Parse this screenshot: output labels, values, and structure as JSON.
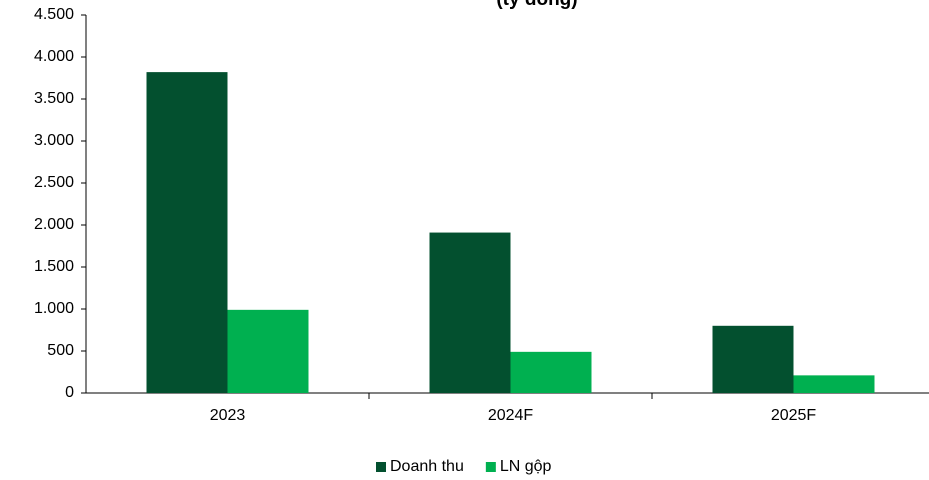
{
  "chart_data": {
    "type": "bar",
    "title": "(tỷ đồng)",
    "categories": [
      "2023",
      "2024F",
      "2025F"
    ],
    "series": [
      {
        "name": "Doanh thu",
        "color": "#03502f",
        "values": [
          3820,
          1910,
          800
        ]
      },
      {
        "name": "LN gộp",
        "color": "#00b050",
        "values": [
          990,
          490,
          210
        ]
      }
    ],
    "ylim": [
      0,
      4500
    ],
    "yticks": [
      0,
      500,
      {
        "value": 1000,
        "label": "1.000"
      },
      {
        "value": 1500,
        "label": "1.500"
      },
      {
        "value": 2000,
        "label": "2.000"
      },
      {
        "value": 2500,
        "label": "2.500"
      },
      {
        "value": 3000,
        "label": "3.000"
      },
      {
        "value": 3500,
        "label": "3.500"
      },
      {
        "value": 4000,
        "label": "4.000"
      },
      {
        "value": 4500,
        "label": "4.500"
      }
    ],
    "legend": "bottom"
  }
}
